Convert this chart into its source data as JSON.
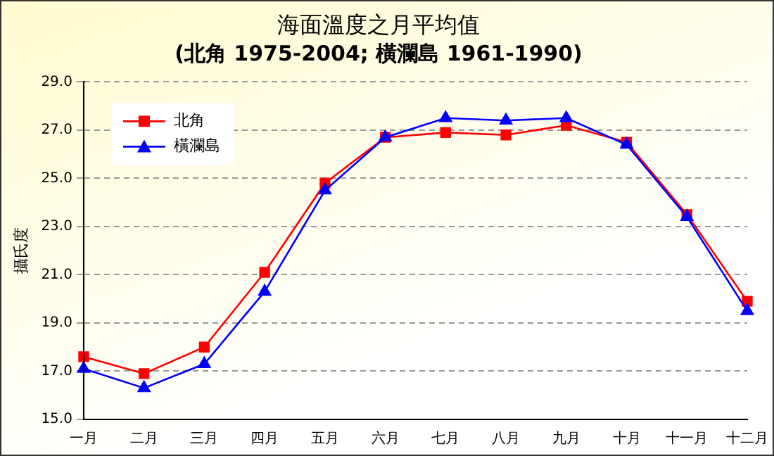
{
  "chart_data": {
    "type": "line",
    "title": "海面溫度之月平均值",
    "subtitle": "(北角 1975-2004; 橫瀾島 1961-1990)",
    "ylabel": "攝氏度",
    "categories": [
      "一月",
      "二月",
      "三月",
      "四月",
      "五月",
      "六月",
      "七月",
      "八月",
      "九月",
      "十月",
      "十一月",
      "十二月"
    ],
    "series": [
      {
        "name": "北角",
        "color": "#ff0000",
        "marker": "square",
        "values": [
          17.6,
          16.9,
          18.0,
          21.1,
          24.8,
          26.7,
          26.9,
          26.8,
          27.2,
          26.5,
          23.5,
          19.9
        ]
      },
      {
        "name": "橫瀾島",
        "color": "#0000ff",
        "marker": "triangle",
        "values": [
          17.1,
          16.3,
          17.3,
          20.3,
          24.5,
          26.7,
          27.5,
          27.4,
          27.5,
          26.4,
          23.4,
          19.5
        ]
      }
    ],
    "ylim": [
      15,
      29
    ],
    "yticks": [
      {
        "value": 15,
        "label": "15.0"
      },
      {
        "value": 17,
        "label": "17.0"
      },
      {
        "value": 19,
        "label": "19.0"
      },
      {
        "value": 21,
        "label": "21.0"
      },
      {
        "value": 23,
        "label": "23.0"
      },
      {
        "value": 25,
        "label": "25.0"
      },
      {
        "value": 27,
        "label": "27.0"
      },
      {
        "value": 29,
        "label": "29.0"
      }
    ],
    "grid": "y",
    "legend": "top left"
  }
}
